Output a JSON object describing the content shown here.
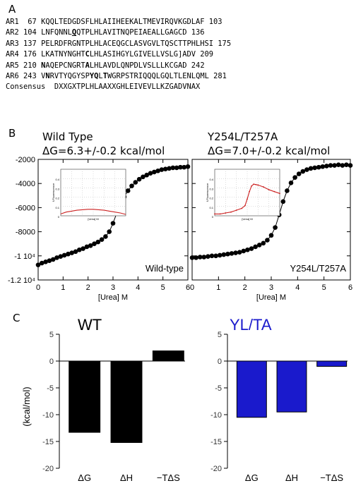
{
  "panel_a": {
    "letter": "A",
    "rows": [
      {
        "name": "AR1",
        "start": "67",
        "segs": [
          {
            "t": "KQQLTEDGDSFLHLAIIHEEKALTMEVIRQVKGDLAF"
          }
        ],
        "end": "103"
      },
      {
        "name": "AR2",
        "start": "104",
        "segs": [
          {
            "t": "LNFQNNL"
          },
          {
            "t": "Q",
            "b": true,
            "u": true
          },
          {
            "t": "QTPLHLAVITNQPEIAEALLGAGCD"
          }
        ],
        "end": "136"
      },
      {
        "name": "AR3",
        "start": "137",
        "segs": [
          {
            "t": "PELRDFRGNTPLHLACEQGCLASVGVLTQSCTTPHLHSI"
          }
        ],
        "end": "175"
      },
      {
        "name": "AR4",
        "start": "176",
        "segs": [
          {
            "t": "LKATNYNGHT"
          },
          {
            "t": "C",
            "b": true
          },
          {
            "t": "LHLASIHGYLGIVELLVSLG]ADV"
          }
        ],
        "end": "209"
      },
      {
        "name": "AR5",
        "start": "210",
        "segs": [
          {
            "t": "N",
            "b": true
          },
          {
            "t": "AQEPCNGRT"
          },
          {
            "t": "A",
            "b": true
          },
          {
            "t": "LHLAVDLQNPDLVSLLLKCGAD"
          }
        ],
        "end": "242"
      },
      {
        "name": "AR6",
        "start": "243",
        "segs": [
          {
            "t": "V"
          },
          {
            "t": "N",
            "b": true
          },
          {
            "t": "RVTYQGYSP"
          },
          {
            "t": "YQ",
            "b": true
          },
          {
            "t": "L"
          },
          {
            "t": "T",
            "b": true
          },
          {
            "t": "WGRPSTRIQQQLGQLTLENLQML"
          }
        ],
        "end": "281"
      },
      {
        "name": "Consensus",
        "start": "",
        "segs": [
          {
            "t": "DXXGXTPLHLAAXXGHLEIVEVLLKZGADVNAX"
          }
        ],
        "end": ""
      }
    ]
  },
  "panel_b": {
    "letter": "B",
    "left": {
      "title": "Wild Type",
      "dg": "ΔG=6.3+/-0.2 kcal/mol",
      "label": "Wild-type",
      "y_ticks": [
        "-2000",
        "-4000",
        "-6000",
        "-8000",
        "-1 10⁴",
        "-1.2 10⁴"
      ],
      "x_ticks": [
        "0",
        "1",
        "2",
        "3",
        "4",
        "5",
        "6"
      ],
      "xlabel": "[Urea] M"
    },
    "right": {
      "title": "Y254L/T257A",
      "dg": "ΔG=7.0+/-0.2 kcal/mol",
      "label": "Y254L/T257A",
      "x_ticks": [
        "0",
        "1",
        "2",
        "3",
        "4",
        "5",
        "6"
      ],
      "xlabel": "[Urea] M"
    },
    "inset_ylabel": "f‑Fluorescence",
    "inset_xlabel": "[Urea] M"
  },
  "panel_c": {
    "letter": "C",
    "ylabel": "(kcal/mol)",
    "y_ticks": [
      "5",
      "0",
      "-5",
      "-10",
      "-15",
      "-20"
    ],
    "categories": [
      "ΔG",
      "ΔH",
      "−TΔS"
    ],
    "wt": {
      "title": "WT",
      "color": "#000000"
    },
    "mut": {
      "title": "YL/TA",
      "color": "#1a1acc"
    }
  },
  "chart_data": [
    {
      "type": "scatter",
      "title": "Wild Type",
      "xlabel": "[Urea] M",
      "xlim": [
        0,
        6
      ],
      "ylim": [
        -12000,
        -2000
      ],
      "series": [
        {
          "name": "Wild-type",
          "x": [
            0,
            0.15,
            0.3,
            0.45,
            0.6,
            0.75,
            0.9,
            1.05,
            1.2,
            1.35,
            1.5,
            1.65,
            1.8,
            1.95,
            2.1,
            2.25,
            2.4,
            2.55,
            2.7,
            2.85,
            3.0,
            3.15,
            3.3,
            3.45,
            3.6,
            3.75,
            3.9,
            4.05,
            4.2,
            4.35,
            4.5,
            4.65,
            4.8,
            4.95,
            5.1,
            5.25,
            5.4,
            5.55,
            5.7,
            5.85,
            6.0
          ],
          "y": [
            -10750,
            -10600,
            -10500,
            -10400,
            -10300,
            -10150,
            -10050,
            -9950,
            -9850,
            -9750,
            -9650,
            -9500,
            -9400,
            -9250,
            -9150,
            -9000,
            -8850,
            -8650,
            -8400,
            -8000,
            -7300,
            -6450,
            -5700,
            -5100,
            -4600,
            -4200,
            -3900,
            -3650,
            -3450,
            -3300,
            -3150,
            -3050,
            -2950,
            -2850,
            -2800,
            -2750,
            -2700,
            -2700,
            -2650,
            -2650,
            -2600
          ]
        }
      ]
    },
    {
      "type": "scatter",
      "title": "Y254L/T257A",
      "xlabel": "[Urea] M",
      "xlim": [
        0,
        6
      ],
      "ylim": [
        -12000,
        -2000
      ],
      "series": [
        {
          "name": "Y254L/T257A",
          "x": [
            0,
            0.15,
            0.3,
            0.45,
            0.6,
            0.75,
            0.9,
            1.05,
            1.2,
            1.35,
            1.5,
            1.65,
            1.8,
            1.95,
            2.1,
            2.25,
            2.4,
            2.55,
            2.7,
            2.85,
            3.0,
            3.15,
            3.3,
            3.45,
            3.6,
            3.75,
            3.9,
            4.05,
            4.2,
            4.35,
            4.5,
            4.65,
            4.8,
            4.95,
            5.1,
            5.25,
            5.4,
            5.55,
            5.7,
            5.85,
            6.0
          ],
          "y": [
            -10150,
            -10150,
            -10100,
            -10100,
            -10050,
            -10000,
            -10000,
            -9950,
            -9900,
            -9850,
            -9800,
            -9750,
            -9700,
            -9600,
            -9500,
            -9400,
            -9250,
            -9100,
            -8950,
            -8700,
            -8300,
            -7650,
            -6600,
            -5500,
            -4600,
            -3950,
            -3500,
            -3200,
            -3000,
            -2850,
            -2750,
            -2700,
            -2650,
            -2600,
            -2550,
            -2500,
            -2500,
            -2450,
            -2500,
            -2450,
            -2500
          ]
        }
      ]
    },
    {
      "type": "line",
      "xlim": [
        0,
        6
      ],
      "ylim": [
        0,
        0.5
      ],
      "ylabel": "f-Fluorescence",
      "xlabel": "[Urea] M",
      "series": [
        {
          "x": [
            0,
            0.5,
            1,
            1.5,
            2,
            2.5,
            3,
            3.5,
            4,
            4.5,
            5,
            5.5,
            6
          ],
          "y": [
            0.02,
            0.04,
            0.05,
            0.06,
            0.065,
            0.07,
            0.07,
            0.065,
            0.06,
            0.05,
            0.04,
            0.03,
            0.015
          ]
        }
      ]
    },
    {
      "type": "line",
      "xlim": [
        0,
        6
      ],
      "ylim": [
        0,
        0.5
      ],
      "ylabel": "f-Fluorescence",
      "xlabel": "[Urea] M",
      "series": [
        {
          "x": [
            0,
            0.5,
            1,
            1.5,
            2,
            2.5,
            2.8,
            3.0,
            3.2,
            3.4,
            3.6,
            3.8,
            4.0,
            4.5,
            5,
            5.5,
            6
          ],
          "y": [
            0.02,
            0.02,
            0.03,
            0.04,
            0.06,
            0.08,
            0.11,
            0.18,
            0.26,
            0.32,
            0.34,
            0.335,
            0.33,
            0.31,
            0.28,
            0.26,
            0.24
          ]
        }
      ]
    },
    {
      "type": "bar",
      "title": "WT",
      "ylabel": "(kcal/mol)",
      "categories": [
        "ΔG",
        "ΔH",
        "−TΔS"
      ],
      "values": [
        -13.3,
        -15.2,
        1.9
      ],
      "ylim": [
        -20,
        5
      ]
    },
    {
      "type": "bar",
      "title": "YL/TA",
      "ylabel": "(kcal/mol)",
      "categories": [
        "ΔG",
        "ΔH",
        "−TΔS"
      ],
      "values": [
        -10.5,
        -9.5,
        -1.0
      ],
      "ylim": [
        -20,
        5
      ]
    }
  ]
}
